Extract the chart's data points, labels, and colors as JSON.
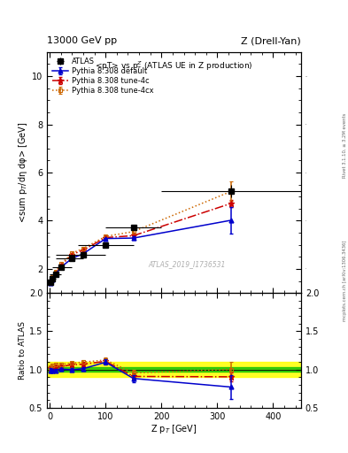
{
  "title_left": "13000 GeV pp",
  "title_right": "Z (Drell-Yan)",
  "main_title": "<pT> vs p$_T^Z$ (ATLAS UE in Z production)",
  "ylabel_main": "<sum p$_T$/dη dφ> [GeV]",
  "ylabel_ratio": "Ratio to ATLAS",
  "xlabel": "Z p$_T$ [GeV]",
  "right_label_top": "Rivet 3.1.10, ≥ 3.2M events",
  "right_label_bot": "mcplots.cern.ch [arXiv:1306.3436]",
  "watermark": "ATLAS_2019_I1736531",
  "atlas_x": [
    2.0,
    5.0,
    10.0,
    20.0,
    40.0,
    60.0,
    100.0,
    150.0,
    325.0
  ],
  "atlas_y": [
    1.44,
    1.6,
    1.78,
    2.06,
    2.45,
    2.6,
    2.98,
    3.72,
    5.22
  ],
  "atlas_yerr": [
    0.05,
    0.04,
    0.04,
    0.04,
    0.05,
    0.06,
    0.07,
    0.12,
    0.25
  ],
  "atlas_xerr_lo": [
    2.0,
    5.0,
    10.0,
    15.0,
    30.0,
    50.0,
    50.0,
    50.0,
    125.0
  ],
  "atlas_xerr_hi": [
    3.0,
    5.0,
    10.0,
    20.0,
    20.0,
    40.0,
    50.0,
    50.0,
    125.0
  ],
  "pythia_default_x": [
    2.0,
    5.0,
    10.0,
    20.0,
    40.0,
    60.0,
    100.0,
    150.0,
    325.0
  ],
  "pythia_default_y": [
    1.42,
    1.57,
    1.76,
    2.07,
    2.44,
    2.63,
    3.26,
    3.28,
    4.02
  ],
  "pythia_default_yerr": [
    0.01,
    0.01,
    0.01,
    0.01,
    0.02,
    0.02,
    0.03,
    0.06,
    0.55
  ],
  "pythia_4c_x": [
    2.0,
    5.0,
    10.0,
    20.0,
    40.0,
    60.0,
    100.0,
    150.0,
    325.0
  ],
  "pythia_4c_y": [
    1.46,
    1.63,
    1.83,
    2.14,
    2.6,
    2.78,
    3.3,
    3.38,
    4.72
  ],
  "pythia_4c_yerr": [
    0.01,
    0.01,
    0.01,
    0.01,
    0.02,
    0.02,
    0.03,
    0.06,
    0.15
  ],
  "pythia_4cx_x": [
    2.0,
    5.0,
    10.0,
    20.0,
    40.0,
    60.0,
    100.0,
    150.0,
    325.0
  ],
  "pythia_4cx_y": [
    1.48,
    1.68,
    1.9,
    2.2,
    2.65,
    2.85,
    3.35,
    3.55,
    5.22
  ],
  "pythia_4cx_yerr": [
    0.01,
    0.01,
    0.01,
    0.01,
    0.02,
    0.02,
    0.03,
    0.06,
    0.4
  ],
  "ratio_default_y": [
    0.986,
    0.981,
    0.989,
    1.005,
    0.996,
    1.01,
    1.095,
    0.882,
    0.77
  ],
  "ratio_default_yerr": [
    0.03,
    0.022,
    0.02,
    0.018,
    0.02,
    0.025,
    0.035,
    0.045,
    0.155
  ],
  "ratio_4c_y": [
    1.014,
    1.019,
    1.028,
    1.039,
    1.061,
    1.069,
    1.107,
    0.909,
    0.904
  ],
  "ratio_4c_yerr": [
    0.03,
    0.022,
    0.02,
    0.018,
    0.02,
    0.025,
    0.035,
    0.045,
    0.055
  ],
  "ratio_4cx_y": [
    1.028,
    1.05,
    1.067,
    1.068,
    1.082,
    1.096,
    1.124,
    0.955,
    1.0
  ],
  "ratio_4cx_yerr": [
    0.03,
    0.022,
    0.02,
    0.018,
    0.02,
    0.025,
    0.035,
    0.045,
    0.105
  ],
  "xlim": [
    -5,
    450
  ],
  "ylim_main": [
    1.0,
    11.0
  ],
  "ylim_ratio": [
    0.5,
    2.0
  ],
  "green_band": [
    0.97,
    1.03
  ],
  "yellow_band": [
    0.9,
    1.1
  ],
  "color_atlas": "#000000",
  "color_default": "#0000cc",
  "color_4c": "#cc0000",
  "color_4cx": "#cc6600"
}
